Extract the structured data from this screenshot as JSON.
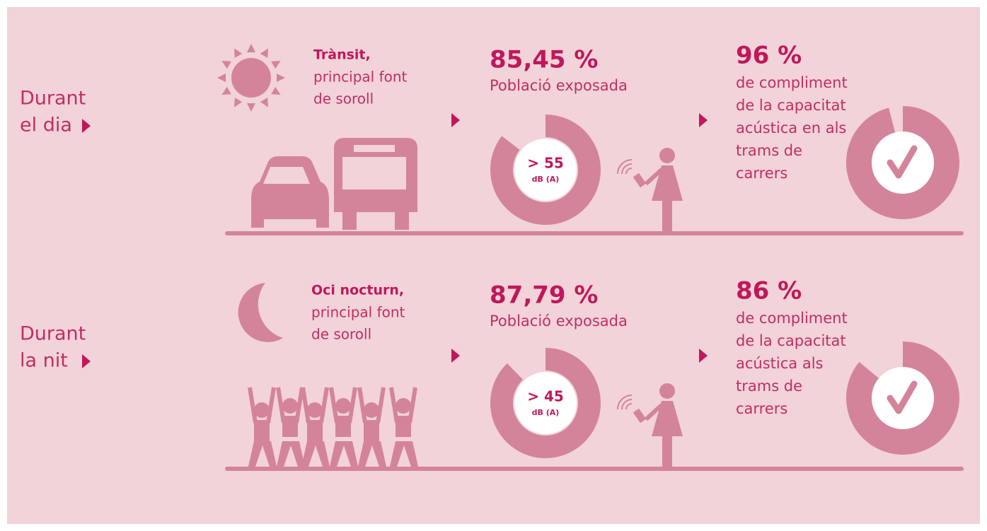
{
  "rows": [
    {
      "period": [
        "Durant",
        "el dia"
      ],
      "source_bold": "Trànsit,",
      "source_text": [
        "principal font",
        "de soroll"
      ],
      "exposed": {
        "value": 85.45,
        "label": "85,45 %"
      },
      "exposed_caption": "Població exposada",
      "threshold": "> 55",
      "unit": "dB (A)",
      "compliance": {
        "value": 96,
        "label": "96 %"
      },
      "compliance_text": [
        "de compliment",
        "de la capacitat",
        "acústica en als",
        "trams de",
        "carrers"
      ]
    },
    {
      "period": [
        "Durant",
        "la nit"
      ],
      "source_bold": "Oci nocturn,",
      "source_text": [
        "principal font",
        "de soroll"
      ],
      "exposed": {
        "value": 87.79,
        "label": "87,79 %"
      },
      "exposed_caption": "Població exposada",
      "threshold": "> 45",
      "unit": "dB (A)",
      "compliance": {
        "value": 86,
        "label": "86 %"
      },
      "compliance_text": [
        "de compliment",
        "de la capacitat",
        "acústica als",
        "trams de",
        "carrers"
      ]
    }
  ]
}
